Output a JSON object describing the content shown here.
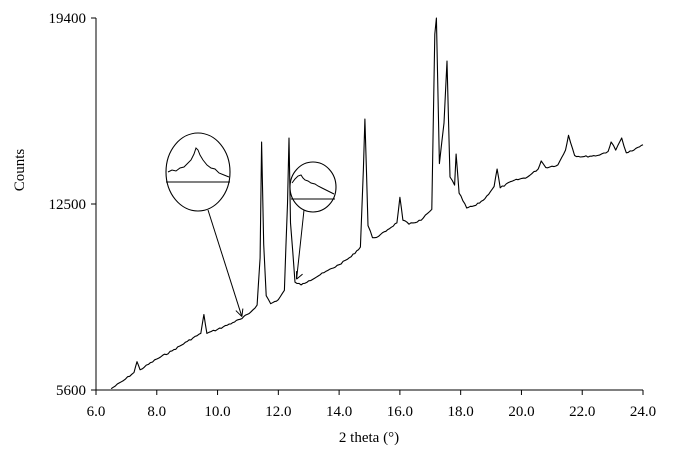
{
  "chart_data": {
    "type": "line",
    "title": "",
    "xlabel": "2 theta (°)",
    "ylabel": "Counts",
    "xlim": [
      6.0,
      24.0
    ],
    "ylim": [
      5600,
      19400
    ],
    "xticks": [
      6.0,
      8.0,
      10.0,
      12.0,
      14.0,
      16.0,
      18.0,
      20.0,
      22.0,
      24.0
    ],
    "xtick_labels": [
      "6.0",
      "8.0",
      "10.0",
      "12.0",
      "14.0",
      "16.0",
      "18.0",
      "20.0",
      "22.0",
      "24.0"
    ],
    "yticks": [
      5600,
      12500,
      19400
    ],
    "ytick_labels": [
      "5600",
      "12500",
      "19400"
    ],
    "grid": false,
    "legend": "none",
    "series": [
      {
        "color": "#000000",
        "points": [
          [
            6.5,
            5650
          ],
          [
            6.9,
            5950
          ],
          [
            7.25,
            6250
          ],
          [
            7.35,
            6650
          ],
          [
            7.45,
            6350
          ],
          [
            8.0,
            6750
          ],
          [
            8.5,
            7050
          ],
          [
            9.0,
            7400
          ],
          [
            9.45,
            7700
          ],
          [
            9.55,
            8400
          ],
          [
            9.65,
            7700
          ],
          [
            10.0,
            7850
          ],
          [
            10.5,
            8100
          ],
          [
            10.8,
            8250
          ],
          [
            11.1,
            8500
          ],
          [
            11.3,
            8750
          ],
          [
            11.4,
            10500
          ],
          [
            11.45,
            14800
          ],
          [
            11.52,
            11000
          ],
          [
            11.6,
            9100
          ],
          [
            11.75,
            8800
          ],
          [
            12.0,
            8950
          ],
          [
            12.2,
            9300
          ],
          [
            12.3,
            12500
          ],
          [
            12.35,
            14950
          ],
          [
            12.4,
            11800
          ],
          [
            12.55,
            9600
          ],
          [
            12.75,
            9500
          ],
          [
            13.0,
            9650
          ],
          [
            13.5,
            9950
          ],
          [
            14.0,
            10250
          ],
          [
            14.4,
            10550
          ],
          [
            14.7,
            10900
          ],
          [
            14.8,
            13800
          ],
          [
            14.85,
            15650
          ],
          [
            14.95,
            11700
          ],
          [
            15.1,
            11250
          ],
          [
            15.3,
            11300
          ],
          [
            15.6,
            11550
          ],
          [
            15.9,
            11800
          ],
          [
            16.0,
            12750
          ],
          [
            16.1,
            11900
          ],
          [
            16.3,
            11750
          ],
          [
            16.7,
            11900
          ],
          [
            17.05,
            12300
          ],
          [
            17.15,
            18800
          ],
          [
            17.2,
            19400
          ],
          [
            17.3,
            14000
          ],
          [
            17.45,
            15500
          ],
          [
            17.55,
            17800
          ],
          [
            17.65,
            13500
          ],
          [
            17.8,
            13200
          ],
          [
            17.85,
            14350
          ],
          [
            17.95,
            12900
          ],
          [
            18.2,
            12350
          ],
          [
            18.5,
            12450
          ],
          [
            18.8,
            12700
          ],
          [
            19.1,
            13150
          ],
          [
            19.2,
            13800
          ],
          [
            19.3,
            13100
          ],
          [
            19.7,
            13350
          ],
          [
            20.2,
            13500
          ],
          [
            20.55,
            13800
          ],
          [
            20.65,
            14100
          ],
          [
            20.8,
            13850
          ],
          [
            21.2,
            13950
          ],
          [
            21.45,
            14500
          ],
          [
            21.55,
            15050
          ],
          [
            21.75,
            14300
          ],
          [
            22.0,
            14250
          ],
          [
            22.5,
            14300
          ],
          [
            22.85,
            14450
          ],
          [
            22.95,
            14800
          ],
          [
            23.1,
            14500
          ],
          [
            23.3,
            14950
          ],
          [
            23.45,
            14400
          ],
          [
            23.7,
            14500
          ],
          [
            24.0,
            14700
          ]
        ]
      }
    ],
    "annotations": [
      {
        "kind": "inset-peak",
        "target": [
          10.8,
          8250
        ]
      },
      {
        "kind": "inset-shoulder",
        "target": [
          12.6,
          9600
        ]
      }
    ]
  }
}
